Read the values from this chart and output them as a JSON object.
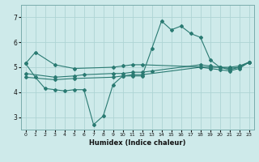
{
  "xlabel": "Humidex (Indice chaleur)",
  "bg_color": "#ceeaea",
  "line_color": "#2a7a72",
  "grid_color": "#aed4d4",
  "xlim": [
    -0.5,
    23.5
  ],
  "ylim": [
    2.5,
    7.5
  ],
  "xticks": [
    0,
    1,
    2,
    3,
    4,
    5,
    6,
    7,
    8,
    9,
    10,
    11,
    12,
    13,
    14,
    15,
    16,
    17,
    18,
    19,
    20,
    21,
    22,
    23
  ],
  "yticks": [
    3,
    4,
    5,
    6,
    7
  ],
  "series": [
    {
      "x": [
        0,
        1,
        3,
        5,
        9,
        10,
        11,
        12,
        19,
        20,
        21,
        22,
        23
      ],
      "y": [
        5.15,
        5.6,
        5.1,
        4.95,
        5.0,
        5.05,
        5.1,
        5.1,
        5.0,
        5.0,
        5.0,
        5.05,
        5.2
      ]
    },
    {
      "x": [
        0,
        3,
        5,
        6,
        9,
        10,
        11,
        12,
        13,
        18,
        19,
        20,
        21,
        22,
        23
      ],
      "y": [
        4.75,
        4.6,
        4.65,
        4.7,
        4.75,
        4.75,
        4.8,
        4.8,
        4.85,
        5.1,
        5.05,
        5.0,
        4.95,
        5.0,
        5.2
      ]
    },
    {
      "x": [
        0,
        3,
        5,
        9,
        10,
        11,
        12,
        18,
        19,
        20,
        21,
        22,
        23
      ],
      "y": [
        4.6,
        4.5,
        4.55,
        4.6,
        4.65,
        4.7,
        4.7,
        5.0,
        4.95,
        4.9,
        4.85,
        4.95,
        5.2
      ]
    },
    {
      "x": [
        0,
        1,
        2,
        3,
        4,
        5,
        6,
        7,
        8,
        9,
        10,
        11,
        12,
        13,
        14,
        15,
        16,
        17,
        18,
        19,
        20,
        21,
        22,
        23
      ],
      "y": [
        5.15,
        4.6,
        4.15,
        4.1,
        4.05,
        4.1,
        4.1,
        2.7,
        3.05,
        4.3,
        4.65,
        4.65,
        4.65,
        5.75,
        6.85,
        6.5,
        6.65,
        6.35,
        6.2,
        5.3,
        5.0,
        4.9,
        5.0,
        5.2
      ]
    }
  ]
}
